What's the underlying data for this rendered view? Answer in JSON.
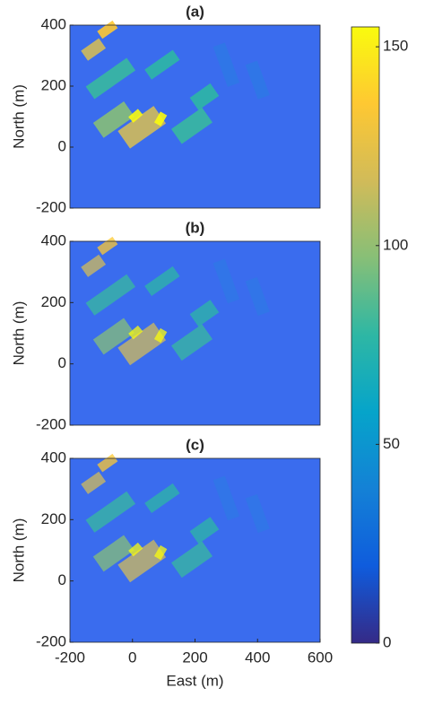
{
  "chart_data": [
    {
      "type": "heatmap",
      "title": "(a)",
      "ylabel": "North (m)",
      "xlim": [
        -200,
        600
      ],
      "ylim": [
        -200,
        400
      ],
      "yticks": [
        -200,
        0,
        200,
        400
      ]
    },
    {
      "type": "heatmap",
      "title": "(b)",
      "ylabel": "North (m)",
      "xlim": [
        -200,
        600
      ],
      "ylim": [
        -200,
        400
      ],
      "yticks": [
        -200,
        0,
        200,
        400
      ]
    },
    {
      "type": "heatmap",
      "title": "(c)",
      "ylabel": "North (m)",
      "xlabel": "East (m)",
      "xlim": [
        -200,
        600
      ],
      "ylim": [
        -200,
        400
      ],
      "yticks": [
        -200,
        0,
        200,
        400
      ],
      "xticks": [
        -200,
        0,
        200,
        400,
        600
      ]
    },
    {
      "type": "colorbar",
      "clim": [
        0,
        155
      ],
      "ticks": [
        0,
        50,
        100,
        150
      ],
      "colormap": [
        "#352a87",
        "#0f5cdd",
        "#1481d6",
        "#06a4ca",
        "#2eb7a4",
        "#87bf77",
        "#d1bb59",
        "#fec832",
        "#f9fb0e"
      ]
    }
  ]
}
